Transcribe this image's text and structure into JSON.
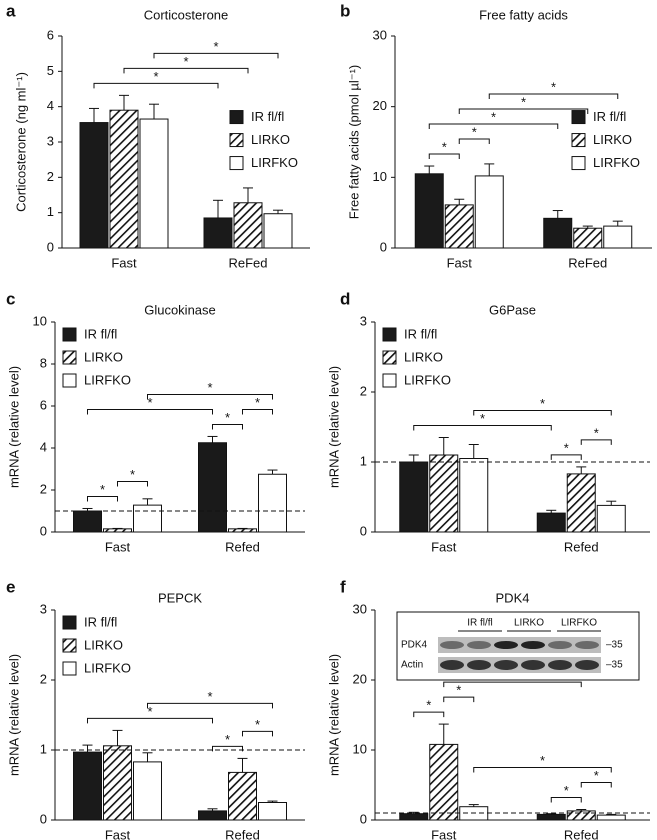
{
  "chart_data": [
    {
      "type": "bar",
      "panel": "a",
      "title": "Corticosterone",
      "ylabel": "Corticosterone (ng ml⁻¹)",
      "categories": [
        "Fast",
        "ReFed"
      ],
      "series": [
        {
          "name": "IR fl/fl",
          "color": "#1a1a1a",
          "pattern": "solid",
          "values": [
            3.55,
            0.85
          ],
          "errors": [
            0.4,
            0.5
          ]
        },
        {
          "name": "LIRKO",
          "color": "#1a1a1a",
          "pattern": "hatched",
          "values": [
            3.9,
            1.28
          ],
          "errors": [
            0.42,
            0.42
          ]
        },
        {
          "name": "LIRFKO",
          "color": "#ffffff",
          "pattern": "open",
          "values": [
            3.65,
            0.97
          ],
          "errors": [
            0.42,
            0.1
          ]
        }
      ],
      "ylim": [
        0,
        6
      ],
      "yticks": [
        0,
        1,
        2,
        3,
        4,
        5,
        6
      ],
      "legend": "center right",
      "significance": [
        {
          "label": "*",
          "bars": [
            [
              0,
              0
            ],
            [
              0,
              1
            ]
          ]
        },
        {
          "label": "*",
          "bars": [
            [
              1,
              0
            ],
            [
              1,
              1
            ]
          ]
        },
        {
          "label": "*",
          "bars": [
            [
              2,
              0
            ],
            [
              2,
              1
            ]
          ]
        }
      ]
    },
    {
      "type": "bar",
      "panel": "b",
      "title": "Free fatty acids",
      "ylabel": "Free fatty acids (pmol µl⁻¹)",
      "categories": [
        "Fast",
        "ReFed"
      ],
      "series": [
        {
          "name": "IR fl/fl",
          "color": "#1a1a1a",
          "pattern": "solid",
          "values": [
            10.5,
            4.2
          ],
          "errors": [
            1.1,
            1.1
          ]
        },
        {
          "name": "LIRKO",
          "color": "#1a1a1a",
          "pattern": "hatched",
          "values": [
            6.1,
            2.8
          ],
          "errors": [
            0.8,
            0.3
          ]
        },
        {
          "name": "LIRFKO",
          "color": "#ffffff",
          "pattern": "open",
          "values": [
            10.2,
            3.1
          ],
          "errors": [
            1.7,
            0.7
          ]
        }
      ],
      "ylim": [
        0,
        30
      ],
      "yticks": [
        0,
        10,
        20,
        30
      ],
      "legend": "center right",
      "significance": [
        {
          "label": "*",
          "bars": [
            [
              0,
              0
            ],
            [
              1,
              0
            ]
          ]
        },
        {
          "label": "*",
          "bars": [
            [
              1,
              0
            ],
            [
              2,
              0
            ]
          ]
        },
        {
          "label": "*",
          "bars": [
            [
              0,
              0
            ],
            [
              0,
              1
            ]
          ]
        },
        {
          "label": "*",
          "bars": [
            [
              1,
              0
            ],
            [
              1,
              1
            ]
          ]
        },
        {
          "label": "*",
          "bars": [
            [
              2,
              0
            ],
            [
              2,
              1
            ]
          ]
        }
      ]
    },
    {
      "type": "bar",
      "panel": "c",
      "title": "Glucokinase",
      "ylabel": "mRNA (relative level)",
      "categories": [
        "Fast",
        "Refed"
      ],
      "series": [
        {
          "name": "IR fl/fl",
          "color": "#1a1a1a",
          "pattern": "solid",
          "values": [
            1.0,
            4.25
          ],
          "errors": [
            0.12,
            0.3
          ]
        },
        {
          "name": "LIRKO",
          "color": "#1a1a1a",
          "pattern": "hatched",
          "values": [
            0.15,
            0.15
          ],
          "errors": [
            0.02,
            0.02
          ]
        },
        {
          "name": "LIRFKO",
          "color": "#ffffff",
          "pattern": "open",
          "values": [
            1.28,
            2.75
          ],
          "errors": [
            0.3,
            0.2
          ]
        }
      ],
      "ylim": [
        0,
        10
      ],
      "yticks": [
        0,
        2,
        4,
        6,
        8,
        10
      ],
      "legend": "upper left",
      "reference_line": 1,
      "significance": [
        {
          "label": "*",
          "bars": [
            [
              0,
              0
            ],
            [
              1,
              0
            ]
          ]
        },
        {
          "label": "*",
          "bars": [
            [
              1,
              0
            ],
            [
              2,
              0
            ]
          ]
        },
        {
          "label": "*",
          "bars": [
            [
              0,
              1
            ],
            [
              1,
              1
            ]
          ]
        },
        {
          "label": "*",
          "bars": [
            [
              1,
              1
            ],
            [
              2,
              1
            ]
          ]
        },
        {
          "label": "*",
          "bars": [
            [
              0,
              0
            ],
            [
              0,
              1
            ]
          ]
        },
        {
          "label": "*",
          "bars": [
            [
              2,
              0
            ],
            [
              2,
              1
            ]
          ]
        }
      ]
    },
    {
      "type": "bar",
      "panel": "d",
      "title": "G6Pase",
      "ylabel": "mRNA (relative level)",
      "categories": [
        "Fast",
        "Refed"
      ],
      "series": [
        {
          "name": "IR fl/fl",
          "color": "#1a1a1a",
          "pattern": "solid",
          "values": [
            1.0,
            0.27
          ],
          "errors": [
            0.1,
            0.04
          ]
        },
        {
          "name": "LIRKO",
          "color": "#1a1a1a",
          "pattern": "hatched",
          "values": [
            1.1,
            0.83
          ],
          "errors": [
            0.25,
            0.1
          ]
        },
        {
          "name": "LIRFKO",
          "color": "#ffffff",
          "pattern": "open",
          "values": [
            1.05,
            0.38
          ],
          "errors": [
            0.2,
            0.06
          ]
        }
      ],
      "ylim": [
        0,
        3
      ],
      "yticks": [
        0,
        1,
        2,
        3
      ],
      "legend": "upper left",
      "reference_line": 1,
      "significance": [
        {
          "label": "*",
          "bars": [
            [
              0,
              1
            ],
            [
              1,
              1
            ]
          ]
        },
        {
          "label": "*",
          "bars": [
            [
              1,
              1
            ],
            [
              2,
              1
            ]
          ]
        },
        {
          "label": "*",
          "bars": [
            [
              0,
              0
            ],
            [
              0,
              1
            ]
          ]
        },
        {
          "label": "*",
          "bars": [
            [
              2,
              0
            ],
            [
              2,
              1
            ]
          ]
        }
      ]
    },
    {
      "type": "bar",
      "panel": "e",
      "title": "PEPCK",
      "ylabel": "mRNA (relative level)",
      "categories": [
        "Fast",
        "Refed"
      ],
      "series": [
        {
          "name": "IR fl/fl",
          "color": "#1a1a1a",
          "pattern": "solid",
          "values": [
            0.97,
            0.13
          ],
          "errors": [
            0.1,
            0.03
          ]
        },
        {
          "name": "LIRKO",
          "color": "#1a1a1a",
          "pattern": "hatched",
          "values": [
            1.06,
            0.68
          ],
          "errors": [
            0.22,
            0.2
          ]
        },
        {
          "name": "LIRFKO",
          "color": "#ffffff",
          "pattern": "open",
          "values": [
            0.83,
            0.25
          ],
          "errors": [
            0.13,
            0.02
          ]
        }
      ],
      "ylim": [
        0,
        3
      ],
      "yticks": [
        0,
        1,
        2,
        3
      ],
      "legend": "upper left",
      "reference_line": 1,
      "significance": [
        {
          "label": "*",
          "bars": [
            [
              0,
              1
            ],
            [
              1,
              1
            ]
          ]
        },
        {
          "label": "*",
          "bars": [
            [
              1,
              1
            ],
            [
              2,
              1
            ]
          ]
        },
        {
          "label": "*",
          "bars": [
            [
              0,
              0
            ],
            [
              0,
              1
            ]
          ]
        },
        {
          "label": "*",
          "bars": [
            [
              2,
              0
            ],
            [
              2,
              1
            ]
          ]
        }
      ]
    },
    {
      "type": "bar",
      "panel": "f",
      "title": "PDK4",
      "ylabel": "mRNA (relative level)",
      "categories": [
        "Fast",
        "Refed"
      ],
      "series": [
        {
          "name": "IR fl/fl",
          "color": "#1a1a1a",
          "pattern": "solid",
          "values": [
            0.9,
            0.8
          ],
          "errors": [
            0.2,
            0.1
          ]
        },
        {
          "name": "LIRKO",
          "color": "#1a1a1a",
          "pattern": "hatched",
          "values": [
            10.8,
            1.3
          ],
          "errors": [
            2.9,
            0.2
          ]
        },
        {
          "name": "LIRFKO",
          "color": "#ffffff",
          "pattern": "open",
          "values": [
            1.9,
            0.7
          ],
          "errors": [
            0.3,
            0.1
          ]
        }
      ],
      "ylim": [
        0,
        30
      ],
      "yticks": [
        0,
        10,
        20,
        30
      ],
      "reference_line": 1,
      "significance": [
        {
          "label": "*",
          "bars": [
            [
              0,
              1
            ],
            [
              1,
              1
            ]
          ]
        },
        {
          "label": "*",
          "bars": [
            [
              1,
              1
            ],
            [
              2,
              1
            ]
          ]
        },
        {
          "label": "*",
          "bars": [
            [
              2,
              0
            ],
            [
              2,
              1
            ]
          ]
        },
        {
          "label": "*",
          "bars": [
            [
              0,
              0
            ],
            [
              1,
              0
            ]
          ]
        },
        {
          "label": "*",
          "bars": [
            [
              1,
              0
            ],
            [
              2,
              0
            ]
          ]
        },
        {
          "label": "*",
          "bars": [
            [
              1,
              0
            ],
            [
              1,
              1
            ]
          ]
        }
      ],
      "inset": {
        "lanes": [
          "IR fl/fl",
          "LIRKO",
          "LIRFKO"
        ],
        "rows": [
          "PDK4",
          "Actin"
        ],
        "markers": [
          "–35",
          "–35"
        ]
      }
    }
  ]
}
